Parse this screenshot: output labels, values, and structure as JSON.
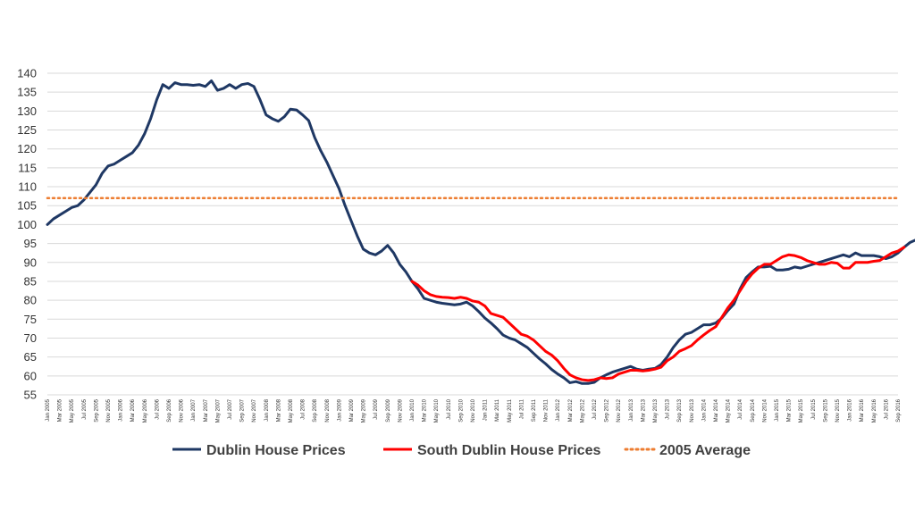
{
  "chart_data": {
    "type": "line",
    "title": "",
    "xlabel": "",
    "ylabel": "",
    "ylim": [
      55,
      140
    ],
    "yticks": [
      55,
      60,
      65,
      70,
      75,
      80,
      85,
      90,
      95,
      100,
      105,
      110,
      115,
      120,
      125,
      130,
      135,
      140
    ],
    "grid": true,
    "legend_position": "bottom",
    "x_tick_labels": [
      "Jan 2005",
      "Mar 2005",
      "May 2005",
      "Jul 2005",
      "Sep 2005",
      "Nov 2005",
      "Jan 2006",
      "Mar 2006",
      "May 2006",
      "Jul 2006",
      "Sep 2006",
      "Nov 2006",
      "Jan 2007",
      "Mar 2007",
      "May 2007",
      "Jul 2007",
      "Sep 2007",
      "Nov 2007",
      "Jan 2008",
      "Mar 2008",
      "May 2008",
      "Jul 2008",
      "Sep 2008",
      "Nov 2008",
      "Jan 2009",
      "Mar 2009",
      "May 2009",
      "Jul 2009",
      "Sep 2009",
      "Nov 2009",
      "Jan 2010",
      "Mar 2010",
      "May 2010",
      "Jul 2010",
      "Sep 2010",
      "Nov 2010",
      "Jan 2011",
      "Mar 2011",
      "May 2011",
      "Jul 2011",
      "Sep 2011",
      "Nov 2011",
      "Jan 2012",
      "Mar 2012",
      "May 2012",
      "Jul 2012",
      "Sep 2012",
      "Nov 2012",
      "Jan 2013",
      "Mar 2013",
      "May 2013",
      "Jul 2013",
      "Sep 2013",
      "Nov 2013",
      "Jan 2014",
      "Mar 2014",
      "May 2014",
      "Jul 2014",
      "Sep 2014",
      "Nov 2014",
      "Jan 2015",
      "Mar 2015",
      "May 2015",
      "Jul 2015",
      "Sep 2015",
      "Nov 2015",
      "Jan 2016",
      "Mar 2016",
      "May 2016",
      "Jul 2016",
      "Sep 2016"
    ],
    "series": [
      {
        "name": "Dublin House Prices",
        "color": "#1f3864",
        "style": "solid",
        "start": "Jan 2005",
        "values": [
          100,
          101.5,
          102.5,
          103.5,
          104.5,
          105,
          106.5,
          108.5,
          110.5,
          113.5,
          115.5,
          116,
          117,
          118,
          119,
          121,
          124,
          128,
          133,
          137,
          136,
          137.5,
          137,
          137,
          136.8,
          137,
          136.5,
          138,
          135.5,
          136,
          137,
          136,
          137,
          137.3,
          136.5,
          133,
          129,
          128,
          127.3,
          128.5,
          130.5,
          130.3,
          129,
          127.5,
          123,
          119.5,
          116.5,
          113,
          109.5,
          105,
          101,
          97,
          93.5,
          92.5,
          92,
          93,
          94.5,
          92.5,
          89.5,
          87.5,
          85,
          83,
          80.5,
          80,
          79.5,
          79.2,
          79,
          78.8,
          79,
          79.5,
          78.5,
          77,
          75.3,
          74,
          72.5,
          70.8,
          70,
          69.5,
          68.5,
          67.5,
          66,
          64.5,
          63.2,
          61.7,
          60.5,
          59.5,
          58.2,
          58.5,
          58,
          58,
          58.3,
          59.5,
          60.3,
          61,
          61.5,
          62,
          62.5,
          61.8,
          61.5,
          61.8,
          62,
          63,
          65,
          67.5,
          69.5,
          71,
          71.5,
          72.5,
          73.5,
          73.5,
          74,
          75.3,
          77.3,
          79,
          83,
          86,
          87.5,
          88.8,
          88.8,
          89,
          88,
          88,
          88.2,
          88.8,
          88.5,
          89,
          89.5,
          90,
          90.5,
          91,
          91.5,
          92,
          91.5,
          92.5,
          91.8,
          91.8,
          91.8,
          91.5,
          91,
          91.5,
          92.5,
          94,
          95.3,
          96
        ]
      },
      {
        "name": "South Dublin House Prices",
        "color": "#ff0000",
        "style": "solid",
        "start": "Jan 2010",
        "values": [
          85,
          84,
          82.5,
          81.5,
          81,
          80.8,
          80.7,
          80.5,
          80.8,
          80.5,
          79.8,
          79.5,
          78.5,
          76.5,
          76,
          75.5,
          74,
          72.5,
          71,
          70.5,
          69.5,
          68,
          66.5,
          65.5,
          64,
          62,
          60.3,
          59.5,
          59,
          58.8,
          59,
          59.5,
          59.3,
          59.5,
          60.5,
          61,
          61.5,
          61.5,
          61.3,
          61.5,
          61.8,
          62.3,
          64,
          65,
          66.5,
          67.2,
          68,
          69.5,
          70.8,
          72,
          73,
          75.5,
          78,
          80,
          82.5,
          85,
          87,
          88.5,
          89.5,
          89.5,
          90.5,
          91.5,
          92,
          91.8,
          91.3,
          90.5,
          90,
          89.5,
          89.5,
          90,
          89.8,
          88.5,
          88.5,
          90,
          90,
          90,
          90.3,
          90.5,
          91.5,
          92.5,
          93,
          94
        ]
      },
      {
        "name": "2005 Average",
        "color": "#ed7d31",
        "style": "dotted",
        "constant": 107
      }
    ]
  }
}
